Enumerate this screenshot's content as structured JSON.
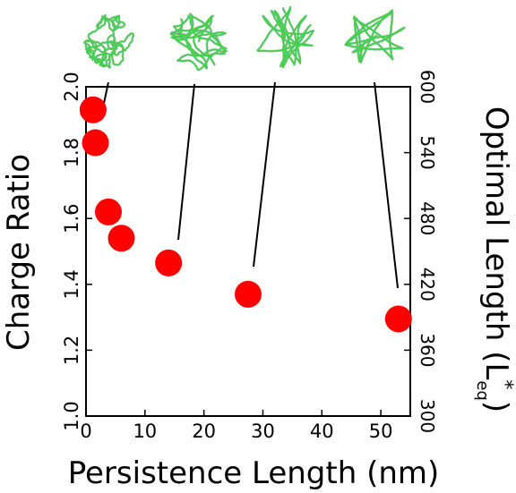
{
  "chart_data": {
    "type": "scatter",
    "xlabel": "Persistence Length (nm)",
    "ylabel": "Charge Ratio",
    "y2label_main": "Optimal Length (L",
    "y2label_sup": "*",
    "y2label_sub": "eq",
    "y2label_close": ")",
    "xlim": [
      0,
      55
    ],
    "ylim": [
      1.0,
      2.0
    ],
    "y2lim": [
      300,
      600
    ],
    "xticks": [
      "0",
      "10",
      "20",
      "30",
      "40",
      "50"
    ],
    "yticks": [
      "1.0",
      "1.2",
      "1.4",
      "1.6",
      "1.8",
      "2.0"
    ],
    "y2ticks": [
      "300",
      "360",
      "420",
      "480",
      "540",
      "600"
    ],
    "series": [
      {
        "color": "#ff0000",
        "points": [
          {
            "x": 1.2,
            "y": 1.93
          },
          {
            "x": 1.6,
            "y": 1.83
          },
          {
            "x": 3.8,
            "y": 1.62
          },
          {
            "x": 6.0,
            "y": 1.54
          },
          {
            "x": 14.0,
            "y": 1.465
          },
          {
            "x": 27.5,
            "y": 1.37
          },
          {
            "x": 53.0,
            "y": 1.295
          }
        ]
      }
    ],
    "thumbnails": [
      {
        "icon": "tangled-chain-icon",
        "points_to_index": 0
      },
      {
        "icon": "coiled-chain-icon",
        "points_to_index": 4
      },
      {
        "icon": "loose-coil-icon",
        "points_to_index": 5
      },
      {
        "icon": "open-coil-icon",
        "points_to_index": 6
      }
    ],
    "grid": false,
    "legend": "none"
  }
}
